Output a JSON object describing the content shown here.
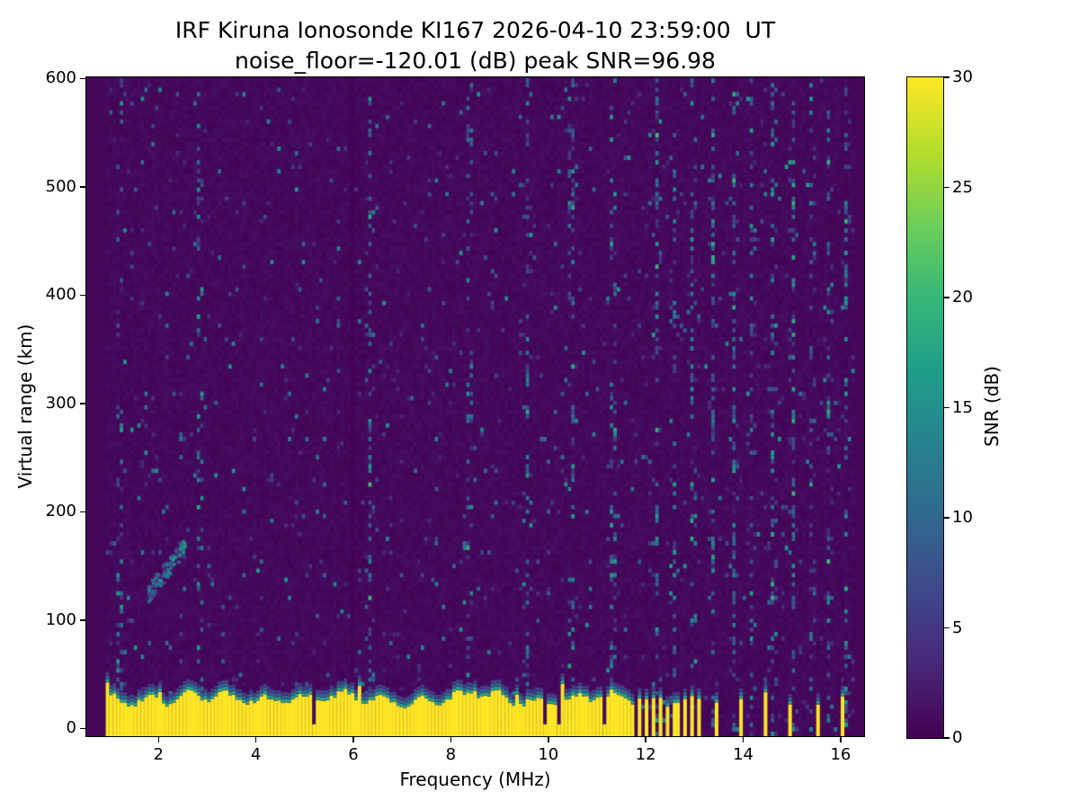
{
  "figure": {
    "background_color": "#ffffff",
    "text_color": "#000000"
  },
  "chart_data": {
    "type": "heatmap",
    "title": "IRF Kiruna Ionosonde KI167 2026-04-10 23:59:00  UT",
    "subtitle": "noise_floor=-120.01 (dB) peak SNR=96.98",
    "xlabel": "Frequency (MHz)",
    "ylabel": "Virtual range (km)",
    "xlim": [
      0.5,
      16.5
    ],
    "ylim": [
      -8,
      602
    ],
    "xticks": [
      2,
      4,
      6,
      8,
      10,
      12,
      14,
      16
    ],
    "yticks": [
      0,
      100,
      200,
      300,
      400,
      500,
      600
    ],
    "grid": false,
    "noise_floor_db": -120.01,
    "peak_snr_db": 96.98,
    "colorbar": {
      "label": "SNR (dB)",
      "min": 0,
      "max": 30,
      "ticks": [
        0,
        5,
        10,
        15,
        20,
        25,
        30
      ],
      "colormap": "viridis",
      "colormap_stops": [
        "#440154",
        "#482878",
        "#3e4989",
        "#31688e",
        "#26828e",
        "#1f9e89",
        "#35b779",
        "#6ece58",
        "#b5de2b",
        "#fde725"
      ]
    },
    "features": {
      "freq_range_mhz": [
        0.9,
        16.3
      ],
      "range_km": [
        -8,
        600
      ],
      "background_snr_db_typical": 1,
      "speckle_snr_db_max": 15,
      "ground_clutter": {
        "freq_start_mhz": 0.9,
        "freq_end_mhz": 11.63,
        "top_km_mean": 27,
        "snr_db": 30
      },
      "intermittent_clutter_stripes_mhz": [
        11.7,
        11.85,
        12.0,
        12.15,
        12.3,
        12.45,
        12.6,
        12.75,
        12.9,
        13.05,
        13.45,
        13.95,
        14.45,
        14.95,
        15.5,
        16.05
      ],
      "echo_trace": {
        "freq_start_mhz": 1.75,
        "freq_end_mhz": 2.5,
        "range_start_km": 125,
        "range_end_km": 170,
        "snr_db_max": 16
      },
      "rfi_speckle_stripes_mhz": [
        1.15,
        2.8,
        6.3,
        8.35,
        9.55,
        10.45,
        11.3,
        12.2,
        12.55,
        12.95,
        13.35,
        13.8,
        14.15,
        14.6,
        15.0,
        15.4,
        15.75,
        16.1
      ],
      "dark_stripes_mhz": [
        5.95
      ]
    }
  }
}
